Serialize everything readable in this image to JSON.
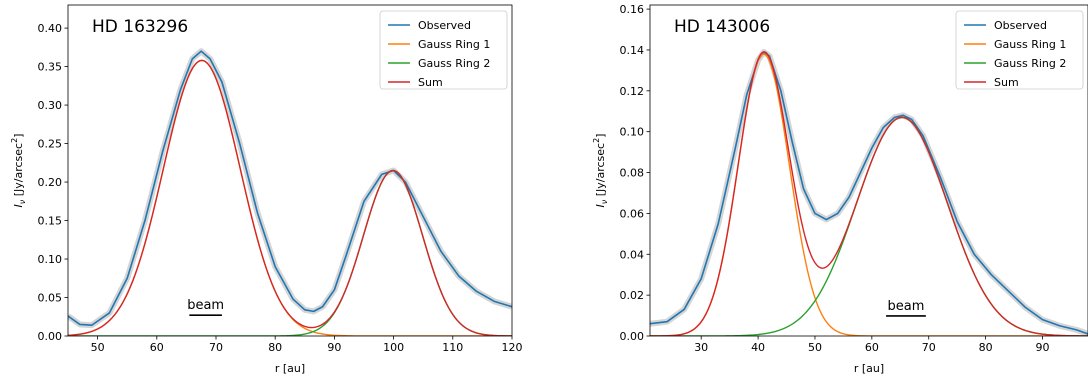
{
  "chart_data": [
    {
      "type": "line",
      "title": "HD 163296",
      "xlabel": "r [au]",
      "ylabel": "I_ν [Jy/arcsec²]",
      "xlim": [
        45,
        120
      ],
      "ylim": [
        0,
        0.43
      ],
      "xticks": [
        "50",
        "60",
        "70",
        "80",
        "90",
        "100",
        "110",
        "120"
      ],
      "yticks": [
        "0.00",
        "0.05",
        "0.10",
        "0.15",
        "0.20",
        "0.25",
        "0.30",
        "0.35",
        "0.40"
      ],
      "legend": [
        "Observed",
        "Gauss Ring 1",
        "Gauss Ring 2",
        "Sum"
      ],
      "legend_position": "top-right",
      "beam_label": "beam",
      "series": [
        {
          "name": "Observed",
          "color": "#1f77b4",
          "x": [
            45,
            47,
            49,
            52,
            55,
            58,
            61,
            64,
            66,
            67.5,
            69,
            71,
            74,
            77,
            80,
            83,
            85,
            86.5,
            88,
            90,
            92,
            95,
            98,
            100,
            102,
            105,
            108,
            111,
            114,
            117,
            120
          ],
          "y": [
            0.026,
            0.015,
            0.014,
            0.03,
            0.075,
            0.15,
            0.24,
            0.32,
            0.36,
            0.37,
            0.36,
            0.33,
            0.25,
            0.16,
            0.09,
            0.048,
            0.034,
            0.032,
            0.038,
            0.06,
            0.105,
            0.175,
            0.21,
            0.215,
            0.2,
            0.155,
            0.11,
            0.078,
            0.058,
            0.045,
            0.038
          ]
        },
        {
          "name": "Gauss Ring 1",
          "color": "#ff7f0e",
          "kind": "gauss",
          "amp": 0.358,
          "mu": 67.6,
          "sigma": 6.5
        },
        {
          "name": "Gauss Ring 2",
          "color": "#2ca02c",
          "kind": "gauss",
          "amp": 0.215,
          "mu": 99.9,
          "sigma": 5.0
        },
        {
          "name": "Sum",
          "color": "#d62728",
          "kind": "sum"
        }
      ]
    },
    {
      "type": "line",
      "title": "HD 143006",
      "xlabel": "r [au]",
      "ylabel": "I_ν [Jy/arcsec²]",
      "xlim": [
        21,
        98
      ],
      "ylim": [
        0,
        0.162
      ],
      "xticks": [
        "30",
        "40",
        "50",
        "60",
        "70",
        "80",
        "90"
      ],
      "yticks": [
        "0.00",
        "0.02",
        "0.04",
        "0.06",
        "0.08",
        "0.10",
        "0.12",
        "0.14",
        "0.16"
      ],
      "legend": [
        "Observed",
        "Gauss Ring 1",
        "Gauss Ring 2",
        "Sum"
      ],
      "legend_position": "top-right",
      "beam_label": "beam",
      "series": [
        {
          "name": "Observed",
          "color": "#1f77b4",
          "x": [
            21,
            24,
            27,
            30,
            33,
            36,
            38,
            40,
            41,
            42,
            44,
            46,
            48,
            50,
            52,
            54,
            56,
            58,
            60,
            62,
            64,
            65.5,
            67,
            69,
            72,
            75,
            78,
            81,
            84,
            87,
            90,
            93,
            96,
            98
          ],
          "y": [
            0.006,
            0.007,
            0.013,
            0.028,
            0.055,
            0.092,
            0.118,
            0.135,
            0.139,
            0.137,
            0.12,
            0.095,
            0.072,
            0.06,
            0.057,
            0.06,
            0.068,
            0.08,
            0.092,
            0.102,
            0.107,
            0.108,
            0.106,
            0.098,
            0.078,
            0.056,
            0.04,
            0.03,
            0.022,
            0.014,
            0.008,
            0.005,
            0.003,
            0.001
          ]
        },
        {
          "name": "Gauss Ring 1",
          "color": "#ff7f0e",
          "kind": "gauss",
          "amp": 0.138,
          "mu": 41.0,
          "sigma": 4.5
        },
        {
          "name": "Gauss Ring 2",
          "color": "#2ca02c",
          "kind": "gauss",
          "amp": 0.107,
          "mu": 65.3,
          "sigma": 8.0
        },
        {
          "name": "Sum",
          "color": "#d62728",
          "kind": "sum"
        }
      ]
    }
  ]
}
